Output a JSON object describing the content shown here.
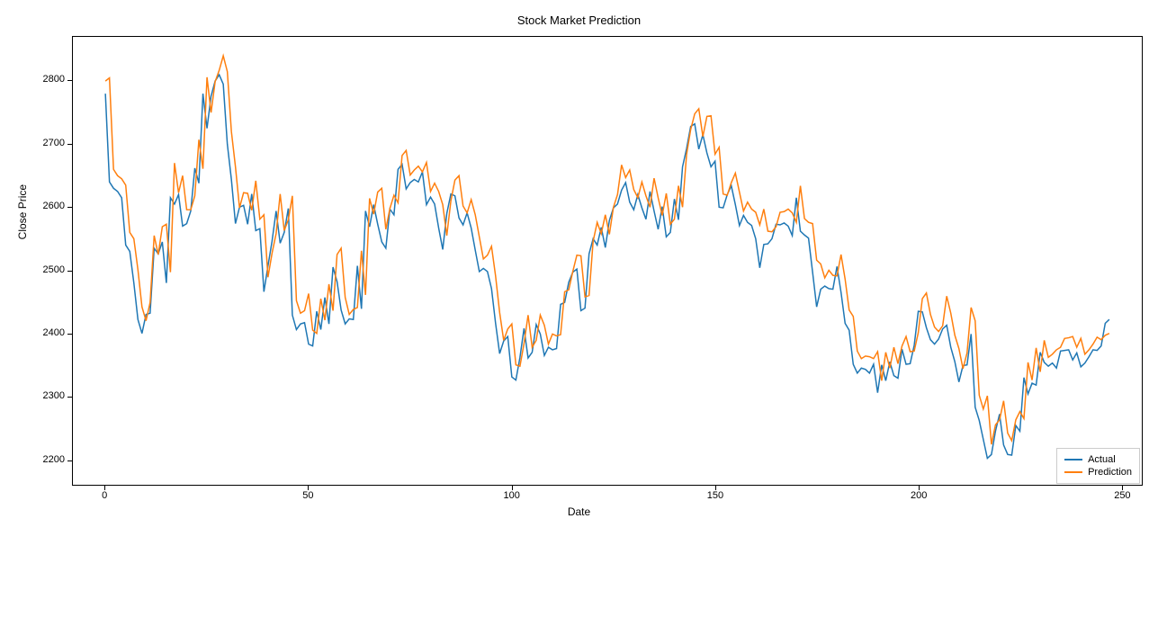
{
  "chart": {
    "type": "line",
    "title": "Stock Market Prediction",
    "title_fontsize": 13,
    "xlabel": "Date",
    "ylabel": "Close Price",
    "label_fontsize": 12,
    "background_color": "#ffffff",
    "border_color": "#000000",
    "tick_fontsize": 11,
    "xlim": [
      -8,
      255
    ],
    "ylim": [
      2160,
      2870
    ],
    "xticks": [
      0,
      50,
      100,
      150,
      200,
      250
    ],
    "yticks": [
      2200,
      2300,
      2400,
      2500,
      2600,
      2700,
      2800
    ],
    "line_width": 1.5,
    "series": [
      {
        "name": "Actual",
        "color": "#1f77b4",
        "data": [
          2780,
          2640,
          2630,
          2625,
          2615,
          2540,
          2530,
          2480,
          2422,
          2400,
          2430,
          2432,
          2535,
          2526,
          2545,
          2480,
          2615,
          2605,
          2620,
          2570,
          2574,
          2594,
          2662,
          2638,
          2780,
          2725,
          2776,
          2800,
          2810,
          2795,
          2700,
          2644,
          2574,
          2600,
          2603,
          2573,
          2621,
          2563,
          2566,
          2466,
          2507,
          2546,
          2594,
          2543,
          2560,
          2598,
          2429,
          2406,
          2415,
          2417,
          2383,
          2380,
          2435,
          2406,
          2457,
          2415,
          2505,
          2482,
          2437,
          2415,
          2423,
          2422,
          2507,
          2439,
          2594,
          2569,
          2604,
          2573,
          2545,
          2535,
          2597,
          2588,
          2660,
          2668,
          2629,
          2639,
          2644,
          2640,
          2656,
          2604,
          2616,
          2605,
          2567,
          2533,
          2590,
          2621,
          2618,
          2583,
          2572,
          2591,
          2567,
          2532,
          2498,
          2503,
          2498,
          2471,
          2416,
          2368,
          2388,
          2395,
          2331,
          2326,
          2362,
          2408,
          2361,
          2370,
          2414,
          2399,
          2365,
          2378,
          2374,
          2376,
          2446,
          2449,
          2481,
          2497,
          2502,
          2436,
          2440,
          2526,
          2550,
          2540,
          2568,
          2536,
          2579,
          2599,
          2605,
          2627,
          2639,
          2608,
          2596,
          2620,
          2599,
          2581,
          2625,
          2594,
          2565,
          2601,
          2553,
          2560,
          2613,
          2580,
          2664,
          2693,
          2728,
          2732,
          2692,
          2715,
          2686,
          2664,
          2673,
          2600,
          2599,
          2620,
          2634,
          2604,
          2571,
          2587,
          2576,
          2571,
          2550,
          2504,
          2541,
          2542,
          2550,
          2573,
          2572,
          2575,
          2570,
          2555,
          2615,
          2562,
          2556,
          2551,
          2497,
          2442,
          2470,
          2475,
          2471,
          2470,
          2506,
          2465,
          2416,
          2405,
          2351,
          2337,
          2345,
          2343,
          2337,
          2351,
          2306,
          2350,
          2325,
          2355,
          2333,
          2329,
          2375,
          2351,
          2352,
          2381,
          2435,
          2434,
          2409,
          2390,
          2383,
          2391,
          2407,
          2413,
          2378,
          2355,
          2323,
          2349,
          2350,
          2399,
          2283,
          2262,
          2232,
          2202,
          2208,
          2245,
          2272,
          2223,
          2208,
          2207,
          2254,
          2245,
          2330,
          2304,
          2321,
          2318,
          2370,
          2354,
          2348,
          2353,
          2345,
          2372,
          2373,
          2374,
          2358,
          2369,
          2347,
          2353,
          2363,
          2374,
          2373,
          2380,
          2416,
          2422
        ]
      },
      {
        "name": "Prediction",
        "color": "#ff7f0e",
        "data": [
          2800,
          2805,
          2660,
          2650,
          2645,
          2635,
          2560,
          2550,
          2501,
          2442,
          2420,
          2449,
          2555,
          2525,
          2569,
          2573,
          2497,
          2670,
          2623,
          2650,
          2596,
          2596,
          2618,
          2707,
          2661,
          2806,
          2750,
          2799,
          2817,
          2840,
          2815,
          2720,
          2664,
          2599,
          2623,
          2622,
          2595,
          2642,
          2581,
          2588,
          2489,
          2527,
          2558,
          2621,
          2563,
          2580,
          2618,
          2452,
          2432,
          2436,
          2463,
          2405,
          2400,
          2455,
          2421,
          2478,
          2436,
          2525,
          2535,
          2457,
          2430,
          2438,
          2441,
          2531,
          2461,
          2614,
          2589,
          2624,
          2630,
          2565,
          2598,
          2619,
          2607,
          2682,
          2690,
          2651,
          2659,
          2665,
          2656,
          2671,
          2625,
          2638,
          2625,
          2604,
          2555,
          2610,
          2643,
          2650,
          2602,
          2591,
          2612,
          2588,
          2553,
          2518,
          2524,
          2538,
          2491,
          2433,
          2389,
          2407,
          2415,
          2350,
          2348,
          2384,
          2429,
          2378,
          2389,
          2429,
          2413,
          2383,
          2399,
          2396,
          2398,
          2466,
          2469,
          2498,
          2524,
          2523,
          2458,
          2460,
          2546,
          2576,
          2558,
          2588,
          2557,
          2600,
          2620,
          2667,
          2647,
          2659,
          2628,
          2615,
          2640,
          2618,
          2600,
          2646,
          2615,
          2587,
          2622,
          2573,
          2581,
          2634,
          2600,
          2684,
          2723,
          2748,
          2756,
          2712,
          2744,
          2745,
          2684,
          2695,
          2621,
          2619,
          2639,
          2654,
          2624,
          2594,
          2608,
          2597,
          2592,
          2572,
          2597,
          2562,
          2561,
          2569,
          2592,
          2593,
          2597,
          2591,
          2576,
          2634,
          2582,
          2576,
          2574,
          2516,
          2510,
          2488,
          2500,
          2492,
          2491,
          2525,
          2486,
          2437,
          2427,
          2372,
          2360,
          2364,
          2363,
          2360,
          2371,
          2325,
          2370,
          2345,
          2378,
          2352,
          2380,
          2395,
          2371,
          2372,
          2401,
          2455,
          2464,
          2430,
          2410,
          2403,
          2412,
          2459,
          2432,
          2397,
          2376,
          2344,
          2369,
          2441,
          2420,
          2302,
          2280,
          2301,
          2224,
          2255,
          2263,
          2293,
          2242,
          2230,
          2263,
          2276,
          2265,
          2354,
          2326,
          2377,
          2339,
          2389,
          2362,
          2367,
          2374,
          2378,
          2392,
          2393,
          2395,
          2378,
          2392,
          2367,
          2374,
          2383,
          2394,
          2390,
          2397,
          2400
        ]
      }
    ],
    "legend": {
      "position": "bottom-right",
      "border_color": "#cccccc",
      "background_color": "#ffffff",
      "fontsize": 11
    }
  }
}
